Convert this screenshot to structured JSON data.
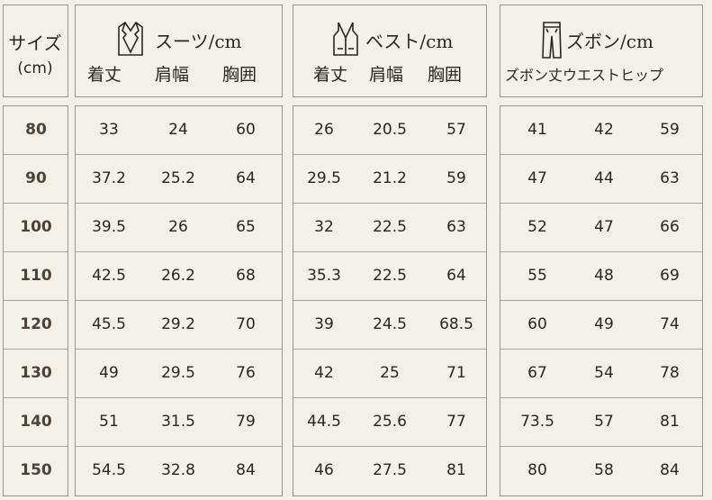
{
  "size_header": {
    "title": "サイズ",
    "unit": "(cm)"
  },
  "sections": [
    {
      "title": "スーツ/cm",
      "icon": "suit-jacket-icon",
      "columns": [
        "着丈",
        "肩幅",
        "胸囲"
      ]
    },
    {
      "title": "ベスト/cm",
      "icon": "vest-icon",
      "columns": [
        "着丈",
        "肩幅",
        "胸囲"
      ]
    },
    {
      "title": "ズボン/cm",
      "icon": "pants-icon",
      "columns_label": "ズボン丈ウエストヒップ"
    }
  ],
  "rows": [
    {
      "size": "80",
      "suit": [
        "33",
        "24",
        "60"
      ],
      "vest": [
        "26",
        "20.5",
        "57"
      ],
      "pants": [
        "41",
        "42",
        "59"
      ]
    },
    {
      "size": "90",
      "suit": [
        "37.2",
        "25.2",
        "64"
      ],
      "vest": [
        "29.5",
        "21.2",
        "59"
      ],
      "pants": [
        "47",
        "44",
        "63"
      ]
    },
    {
      "size": "100",
      "suit": [
        "39.5",
        "26",
        "65"
      ],
      "vest": [
        "32",
        "22.5",
        "63"
      ],
      "pants": [
        "52",
        "47",
        "66"
      ]
    },
    {
      "size": "110",
      "suit": [
        "42.5",
        "26.2",
        "68"
      ],
      "vest": [
        "35.3",
        "22.5",
        "64"
      ],
      "pants": [
        "55",
        "48",
        "69"
      ]
    },
    {
      "size": "120",
      "suit": [
        "45.5",
        "29.2",
        "70"
      ],
      "vest": [
        "39",
        "24.5",
        "68.5"
      ],
      "pants": [
        "60",
        "49",
        "74"
      ]
    },
    {
      "size": "130",
      "suit": [
        "49",
        "29.5",
        "76"
      ],
      "vest": [
        "42",
        "25",
        "71"
      ],
      "pants": [
        "67",
        "54",
        "78"
      ]
    },
    {
      "size": "140",
      "suit": [
        "51",
        "31.5",
        "79"
      ],
      "vest": [
        "44.5",
        "25.6",
        "77"
      ],
      "pants": [
        "73.5",
        "57",
        "81"
      ]
    },
    {
      "size": "150",
      "suit": [
        "54.5",
        "32.8",
        "84"
      ],
      "vest": [
        "46",
        "27.5",
        "81"
      ],
      "pants": [
        "80",
        "58",
        "84"
      ]
    }
  ]
}
